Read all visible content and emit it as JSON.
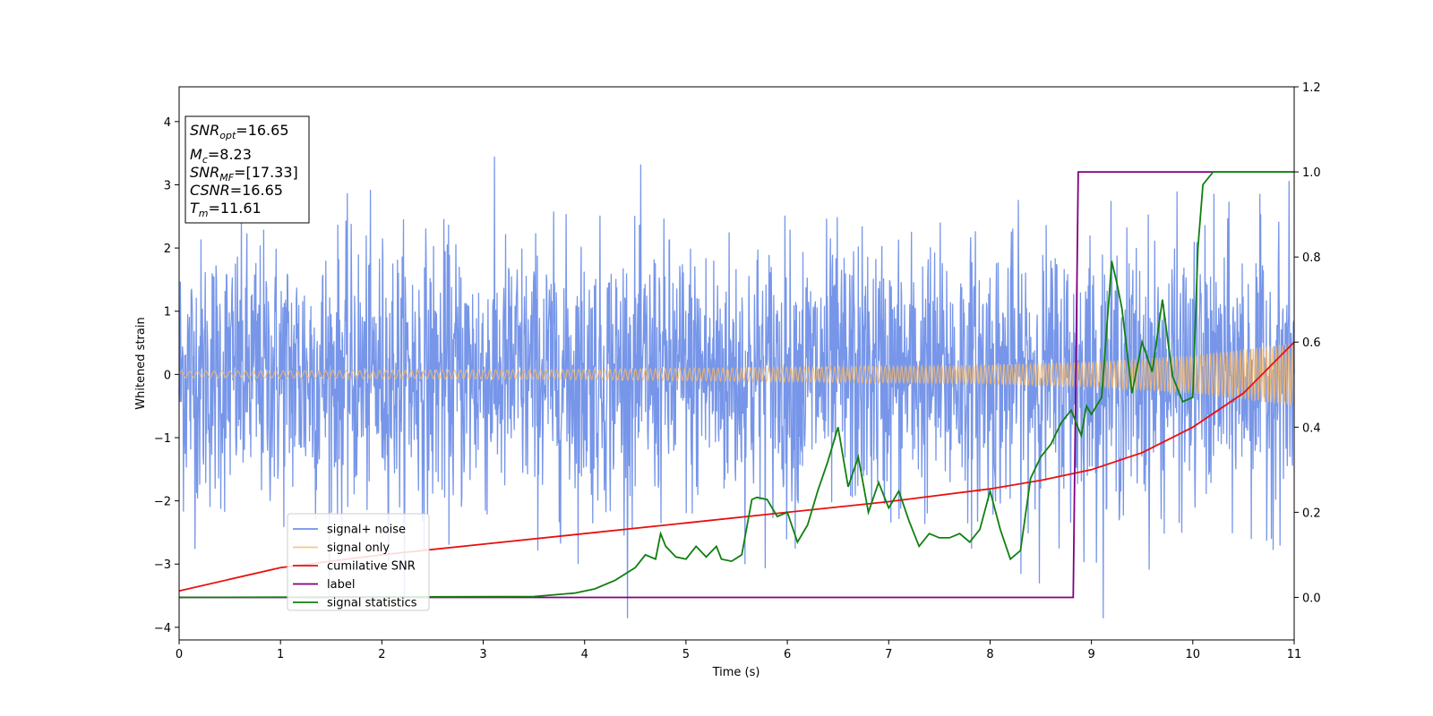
{
  "chart_data": {
    "type": "line",
    "xlabel": "Time (s)",
    "ylabel": "Whitened strain",
    "xlim": [
      0,
      11
    ],
    "ylim": [
      -4.2,
      4.55
    ],
    "y2lim": [
      -0.1,
      1.2
    ],
    "x_ticks": [
      "0",
      "1",
      "2",
      "3",
      "4",
      "5",
      "6",
      "7",
      "8",
      "9",
      "10",
      "11"
    ],
    "y_ticks": [
      "4",
      "3",
      "2",
      "1",
      "0",
      "−1",
      "−2",
      "−3",
      "−4"
    ],
    "y2_ticks": [
      "1.2",
      "1.0",
      "0.8",
      "0.6",
      "0.4",
      "0.2",
      "0.0"
    ],
    "grid": false,
    "legend_position": "lower-left",
    "colors": {
      "signal_noise": "#7090e8",
      "signal_only": "#f4b86a",
      "cumulative_snr": "#e81010",
      "label": "#800080",
      "signal_statistics": "#108010"
    },
    "series": [
      {
        "name": "signal+ noise",
        "axis": "left",
        "description_values": "whitened strain noise, amplitude ~±2.5 with spikes to ±4.2"
      },
      {
        "name": "signal only",
        "axis": "left",
        "envelope": [
          [
            0,
            0.05
          ],
          [
            4,
            0.08
          ],
          [
            8,
            0.15
          ],
          [
            9,
            0.2
          ],
          [
            10,
            0.3
          ],
          [
            11,
            0.5
          ]
        ]
      },
      {
        "name": "cumilative SNR",
        "axis": "right",
        "x": [
          0,
          1,
          2,
          3,
          4,
          5,
          6,
          7,
          8,
          8.5,
          9,
          9.5,
          10,
          10.5,
          11
        ],
        "y": [
          0.015,
          0.07,
          0.1,
          0.125,
          0.15,
          0.175,
          0.2,
          0.225,
          0.255,
          0.275,
          0.3,
          0.34,
          0.4,
          0.48,
          0.6
        ]
      },
      {
        "name": "label",
        "axis": "right",
        "x": [
          0,
          8.82,
          8.87,
          11
        ],
        "y": [
          0.0,
          0.0,
          1.0,
          1.0
        ]
      },
      {
        "name": "signal statistics",
        "axis": "right",
        "x": [
          0,
          3.5,
          3.9,
          4.1,
          4.3,
          4.5,
          4.6,
          4.7,
          4.75,
          4.8,
          4.9,
          5.0,
          5.1,
          5.2,
          5.3,
          5.35,
          5.45,
          5.55,
          5.65,
          5.7,
          5.8,
          5.9,
          6.0,
          6.1,
          6.2,
          6.3,
          6.4,
          6.5,
          6.6,
          6.7,
          6.8,
          6.9,
          7.0,
          7.1,
          7.2,
          7.3,
          7.4,
          7.5,
          7.6,
          7.7,
          7.8,
          7.9,
          8.0,
          8.1,
          8.2,
          8.3,
          8.4,
          8.5,
          8.6,
          8.7,
          8.8,
          8.9,
          8.95,
          9.0,
          9.1,
          9.2,
          9.25,
          9.3,
          9.4,
          9.5,
          9.6,
          9.7,
          9.8,
          9.9,
          10.0,
          10.05,
          10.1,
          10.2,
          10.3,
          10.5,
          11
        ],
        "y": [
          0.0,
          0.002,
          0.01,
          0.02,
          0.04,
          0.07,
          0.1,
          0.09,
          0.15,
          0.12,
          0.095,
          0.09,
          0.12,
          0.095,
          0.12,
          0.09,
          0.085,
          0.1,
          0.23,
          0.235,
          0.23,
          0.19,
          0.2,
          0.13,
          0.17,
          0.25,
          0.32,
          0.4,
          0.26,
          0.33,
          0.2,
          0.27,
          0.21,
          0.25,
          0.18,
          0.12,
          0.15,
          0.14,
          0.14,
          0.15,
          0.13,
          0.16,
          0.25,
          0.16,
          0.09,
          0.11,
          0.28,
          0.33,
          0.36,
          0.41,
          0.44,
          0.38,
          0.45,
          0.43,
          0.47,
          0.79,
          0.74,
          0.68,
          0.48,
          0.6,
          0.53,
          0.7,
          0.52,
          0.46,
          0.47,
          0.82,
          0.97,
          1.0,
          1.0,
          1.0,
          1.0
        ]
      }
    ],
    "annotations": {
      "snr_opt": {
        "label_main": "SNR",
        "label_sub": "opt",
        "value": "=16.65"
      },
      "mc": {
        "label_main": "M",
        "label_sub": "c",
        "value": "=8.23"
      },
      "snr_mf": {
        "label_main": "SNR",
        "label_sub": "MF",
        "value": "=[17.33]"
      },
      "csnr": {
        "label_main": "CSNR",
        "value": "=16.65"
      },
      "tm": {
        "label_main": "T",
        "label_sub": "m",
        "value": "=11.61"
      }
    }
  }
}
